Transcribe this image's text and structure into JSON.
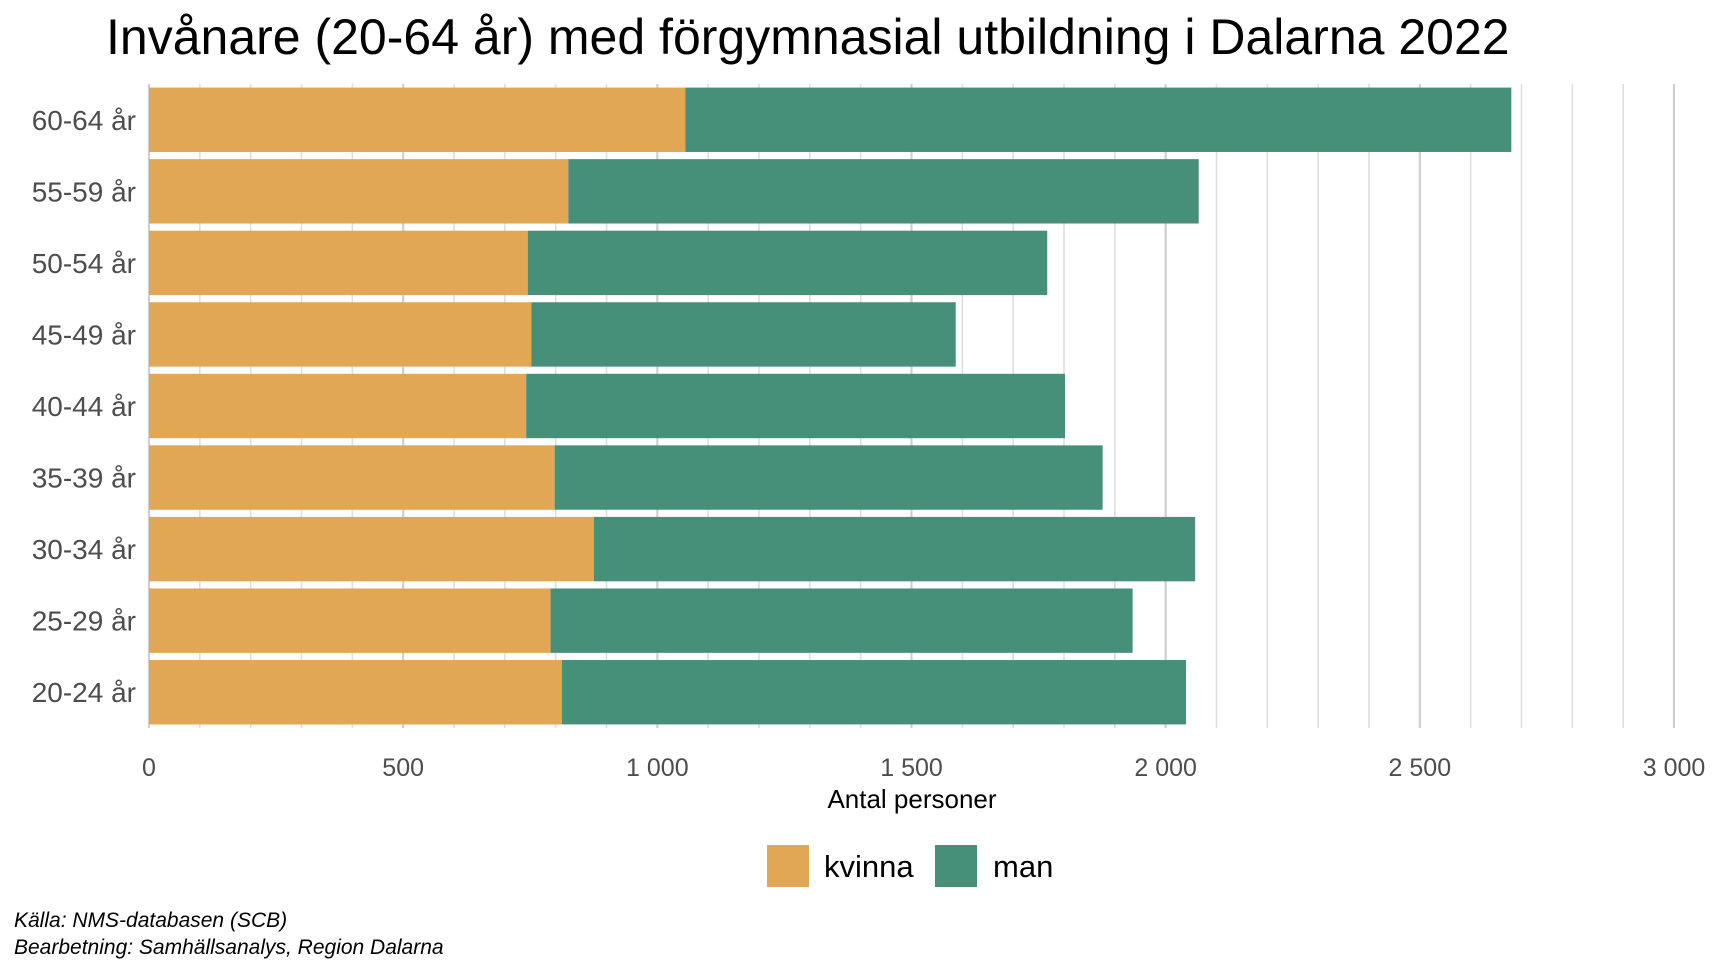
{
  "chart_data": {
    "type": "bar",
    "orientation": "horizontal",
    "stacked": true,
    "title": "Invånare (20-64 år) med förgymnasial utbildning i Dalarna 2022",
    "xlabel": "Antal personer",
    "ylabel": "",
    "xlim": [
      0,
      3000
    ],
    "x_ticks": [
      0,
      500,
      1000,
      1500,
      2000,
      2500,
      3000
    ],
    "x_tick_labels": [
      "0",
      "500",
      "1 000",
      "1 500",
      "2 000",
      "2 500",
      "3 000"
    ],
    "grid": "vertical",
    "legend_position": "bottom",
    "categories": [
      "60-64 år",
      "55-59 år",
      "50-54 år",
      "45-49 år",
      "40-44 år",
      "35-39 år",
      "30-34 år",
      "25-29 år",
      "20-24 år"
    ],
    "series": [
      {
        "name": "kvinna",
        "color": "#E1A754",
        "values": [
          1055,
          825,
          745,
          752,
          742,
          798,
          875,
          790,
          812
        ]
      },
      {
        "name": "man",
        "color": "#46907A",
        "values": [
          1625,
          1240,
          1022,
          835,
          1060,
          1078,
          1183,
          1145,
          1228
        ]
      }
    ],
    "caption": [
      "Källa: NMS-databasen (SCB)",
      "Bearbetning: Samhällsanalys, Region Dalarna"
    ]
  }
}
